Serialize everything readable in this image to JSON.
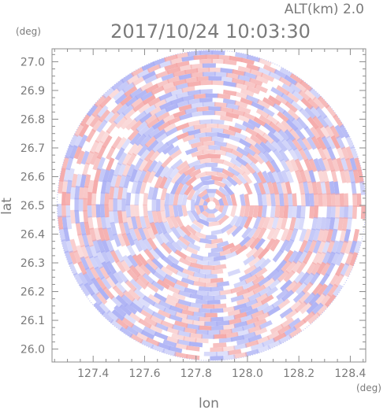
{
  "chart_data": {
    "type": "heatmap",
    "title": "2017/10/24 10:03:30",
    "subtitle": "ALT(km) 2.0",
    "xlabel": "lon",
    "ylabel": "lat",
    "xunit": "(deg)",
    "yunit": "(deg)",
    "xlim": [
      127.24,
      128.46
    ],
    "ylim": [
      25.955,
      27.045
    ],
    "xticks": [
      {
        "value": 127.4,
        "label": "127.4"
      },
      {
        "value": 127.6,
        "label": "127.6"
      },
      {
        "value": 127.8,
        "label": "127.8"
      },
      {
        "value": 128.0,
        "label": "128.0"
      },
      {
        "value": 128.2,
        "label": "128.2"
      },
      {
        "value": 128.4,
        "label": "128.4"
      }
    ],
    "yticks": [
      {
        "value": 26.0,
        "label": "26.0"
      },
      {
        "value": 26.1,
        "label": "26.1"
      },
      {
        "value": 26.2,
        "label": "26.2"
      },
      {
        "value": 26.3,
        "label": "26.3"
      },
      {
        "value": 26.4,
        "label": "26.4"
      },
      {
        "value": 26.5,
        "label": "26.5"
      },
      {
        "value": 26.6,
        "label": "26.6"
      },
      {
        "value": 26.7,
        "label": "26.7"
      },
      {
        "value": 26.8,
        "label": "26.8"
      },
      {
        "value": 26.9,
        "label": "26.9"
      },
      {
        "value": 27.0,
        "label": "27.0"
      }
    ],
    "center": {
      "lon": 127.86,
      "lat": 26.5
    },
    "radius_deg": {
      "lon": 0.6,
      "lat": 0.54
    },
    "colors": {
      "positive": "#f4a7a7",
      "negative": "#a9aef4",
      "neutral": "#ffffff",
      "axis": "#8c8c8c",
      "text": "#7a7a7a"
    },
    "grid": false
  }
}
